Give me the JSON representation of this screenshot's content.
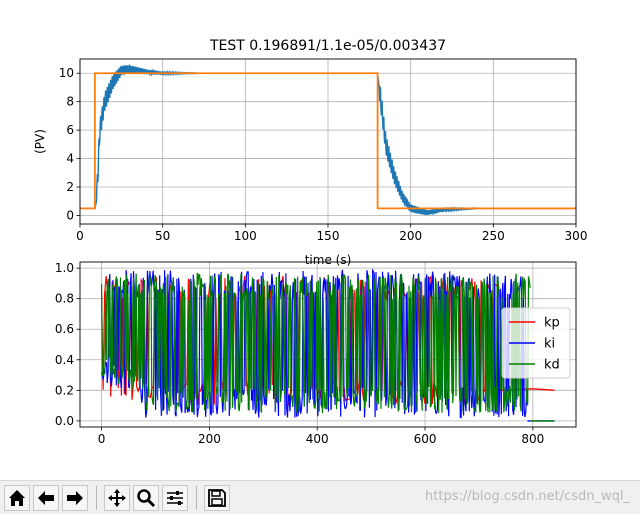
{
  "chart_data": [
    {
      "type": "line",
      "title": "TEST  0.196891/1.1e-05/0.003437",
      "xlabel": "time (s)",
      "ylabel": "(PV)",
      "xlim": [
        0,
        300
      ],
      "ylim": [
        -0.6,
        11.0
      ],
      "xticks": [
        0,
        50,
        100,
        150,
        200,
        250,
        300
      ],
      "yticks": [
        0,
        2,
        4,
        6,
        8,
        10
      ],
      "grid": true,
      "series": [
        {
          "color": "#1f77b4",
          "description_role": "process_value",
          "x": [
            0,
            9,
            10,
            12,
            15,
            20,
            25,
            30,
            40,
            50,
            60,
            80,
            100,
            140,
            180,
            181,
            185,
            190,
            195,
            200,
            210,
            220,
            240,
            260,
            300
          ],
          "y": [
            0.5,
            0.5,
            1.0,
            6.0,
            8.0,
            9.4,
            10.2,
            10.3,
            10.1,
            10.0,
            10.0,
            10.0,
            10.0,
            10.0,
            10.0,
            9.0,
            5.0,
            2.8,
            1.3,
            0.5,
            0.2,
            0.4,
            0.5,
            0.5,
            0.5
          ]
        },
        {
          "color": "#ff7f0e",
          "description_role": "setpoint",
          "x": [
            0,
            9,
            9,
            180,
            180,
            300
          ],
          "y": [
            0.5,
            0.5,
            10.0,
            10.0,
            0.5,
            0.5
          ]
        }
      ]
    },
    {
      "type": "line",
      "xlim": [
        -40,
        880
      ],
      "ylim": [
        -0.04,
        1.04
      ],
      "xticks": [
        0,
        200,
        400,
        600,
        800
      ],
      "yticks": [
        0.0,
        0.2,
        0.4,
        0.6,
        0.8,
        1.0
      ],
      "grid": true,
      "legend": "center-right",
      "series": [
        {
          "name": "kp",
          "color": "#ff0000",
          "x": [
            0,
            730,
            740,
            800,
            840
          ],
          "y": [
            0.5,
            0.3,
            0.2,
            0.21,
            0.2
          ]
        },
        {
          "name": "ki",
          "color": "#0000ff",
          "x": [
            0,
            100,
            400,
            700,
            790,
            800,
            840
          ],
          "y": [
            0.5,
            0.1,
            0.05,
            0.1,
            0.02,
            0.0,
            0.0
          ]
        },
        {
          "name": "kd",
          "color": "#008000",
          "x": [
            0,
            100,
            400,
            700,
            790,
            800,
            840
          ],
          "y": [
            0.5,
            0.2,
            0.1,
            0.3,
            0.05,
            0.0,
            0.0
          ]
        }
      ]
    }
  ],
  "toolbar": {
    "buttons": [
      {
        "icon": "home-icon"
      },
      {
        "icon": "back-arrow-icon"
      },
      {
        "icon": "forward-arrow-icon"
      },
      {
        "icon": "pan-icon"
      },
      {
        "icon": "zoom-icon"
      },
      {
        "icon": "subplots-icon"
      },
      {
        "icon": "save-icon"
      }
    ],
    "watermark": "https://blog.csdn.net/csdn_wql_"
  }
}
